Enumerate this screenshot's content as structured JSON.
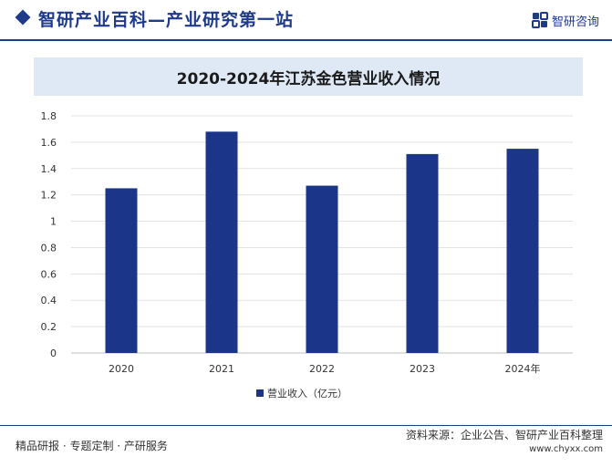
{
  "header": {
    "title": "智研产业百科—产业研究第一站",
    "logo_text": "智研咨询"
  },
  "colors": {
    "brand": "#1e3a8a",
    "bar": "#1b3688",
    "title_band": "#dfe9f6"
  },
  "chart_data": {
    "type": "bar",
    "title": "2020-2024年江苏金色营业收入情况",
    "categories": [
      "2020",
      "2021",
      "2022",
      "2023",
      "2024年"
    ],
    "series": [
      {
        "name": "营业收入（亿元）",
        "values": [
          1.25,
          1.68,
          1.27,
          1.51,
          1.55
        ]
      }
    ],
    "ylim": [
      0,
      1.8
    ],
    "yticks": [
      "0",
      "0.2",
      "0.4",
      "0.6",
      "0.8",
      "1",
      "1.2",
      "1.4",
      "1.6",
      "1.8"
    ],
    "grid": true,
    "legend": "bottom-center",
    "xlabel": "",
    "ylabel": ""
  },
  "footer": {
    "left": "精品研报 · 专题定制 · 产研服务",
    "source": "资料来源：企业公告、智研产业百科整理",
    "url": "www.chyxx.com"
  }
}
